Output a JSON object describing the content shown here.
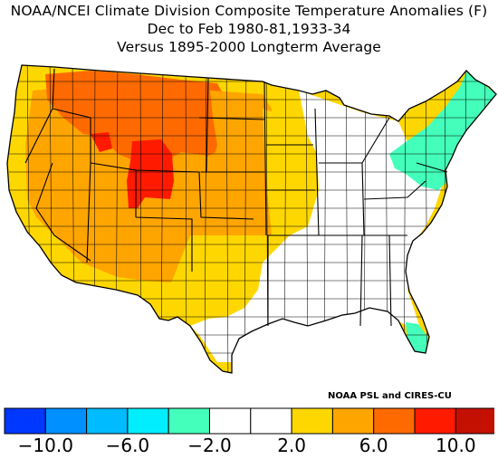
{
  "header": {
    "title": "NOAA/NCEI Climate Division Composite Temperature Anomalies (F)",
    "period": "Dec to Feb  1980-81,1933-34",
    "baseline": "Versus 1895-2000 Longterm Average"
  },
  "credit": "NOAA PSL and CIRES-CU",
  "colors": {
    "border": "#000000",
    "background": "#ffffff"
  },
  "legend": {
    "bins": [
      {
        "color": "#0037ff"
      },
      {
        "color": "#0090ff"
      },
      {
        "color": "#00bbff"
      },
      {
        "color": "#00eeff"
      },
      {
        "color": "#44ffbb"
      },
      {
        "color": "#ffffff"
      },
      {
        "color": "#ffffff"
      },
      {
        "color": "#ffd700"
      },
      {
        "color": "#ffa500"
      },
      {
        "color": "#ff6a00"
      },
      {
        "color": "#ff1a00"
      },
      {
        "color": "#c41000"
      }
    ],
    "tick_labels": [
      "−10.0",
      "−6.0",
      "−2.0",
      "2.0",
      "6.0",
      "10.0"
    ]
  },
  "map_regions": [
    {
      "name": "pacific-coast",
      "color": "#ffd700"
    },
    {
      "name": "great-basin-southwest",
      "color": "#ffa500"
    },
    {
      "name": "northern-rockies",
      "color": "#ff6a00"
    },
    {
      "name": "central-rockies",
      "color": "#ff1a00"
    },
    {
      "name": "great-plains",
      "color": "#ffa500"
    },
    {
      "name": "midwest-margin",
      "color": "#ffd700"
    },
    {
      "name": "southern-tier",
      "color": "#ffd700"
    },
    {
      "name": "eastern-us",
      "color": "#ffffff"
    },
    {
      "name": "northeast",
      "color": "#44ffbb"
    },
    {
      "name": "south-florida",
      "color": "#44ffbb"
    }
  ]
}
